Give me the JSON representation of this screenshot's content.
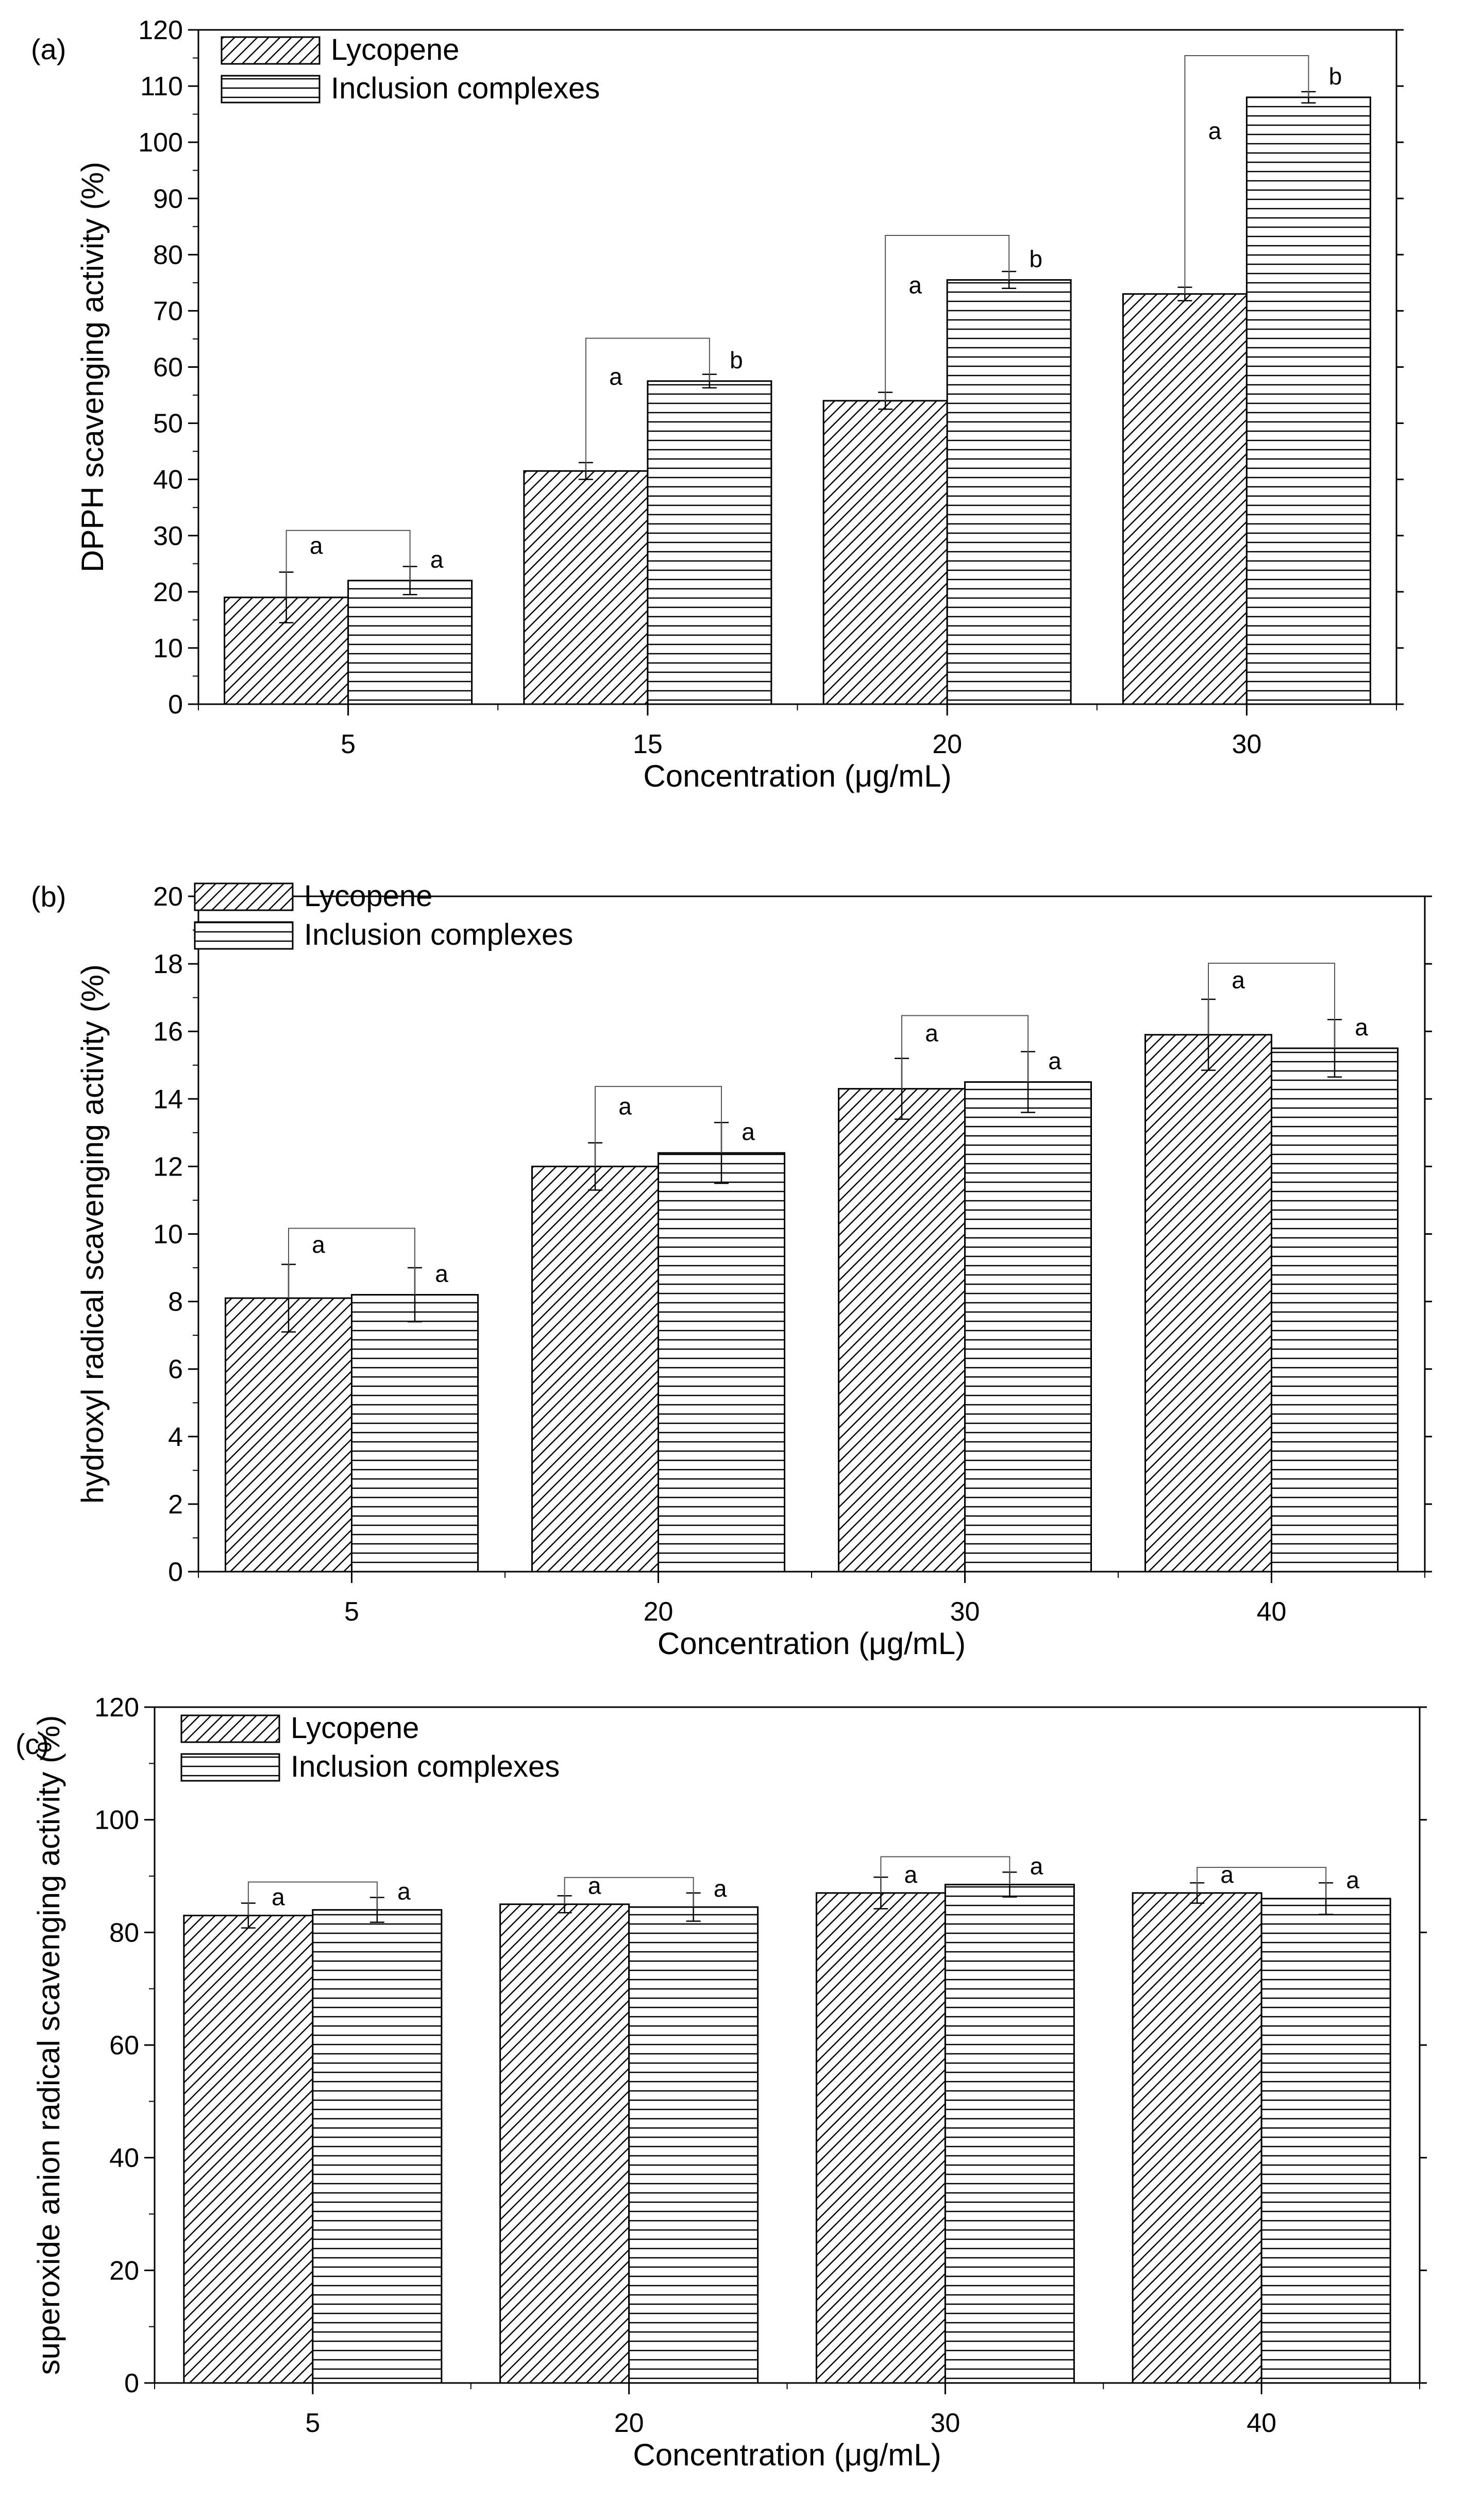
{
  "chart_data": [
    {
      "type": "bar",
      "panel_label": "(a)",
      "xlabel": "Concentration (μg/mL)",
      "ylabel": "DPPH scavenging activity (%)",
      "ylim": [
        0,
        120
      ],
      "yticks": [
        "0",
        "10",
        "20",
        "30",
        "40",
        "50",
        "60",
        "70",
        "80",
        "90",
        "100",
        "110",
        "120"
      ],
      "categories": [
        "5",
        "15",
        "20",
        "30"
      ],
      "series": [
        {
          "name": "Lycopene",
          "values": [
            19,
            41.5,
            54,
            73
          ],
          "errors": [
            4.5,
            1.5,
            1.5,
            1.2
          ]
        },
        {
          "name": "Inclusion complexes",
          "values": [
            22,
            57.5,
            75.5,
            108
          ],
          "errors": [
            2.5,
            1.2,
            1.5,
            1.0
          ]
        }
      ],
      "significance": [
        [
          "a",
          "a"
        ],
        [
          "a",
          "b"
        ],
        [
          "a",
          "b"
        ],
        [
          "a",
          "b"
        ]
      ],
      "legend_position": "top-left"
    },
    {
      "type": "bar",
      "panel_label": "(b)",
      "xlabel": "Concentration (μg/mL)",
      "ylabel": "hydroxyl radical scavenging activity (%)",
      "ylim": [
        0,
        20
      ],
      "yticks": [
        "0",
        "2",
        "4",
        "6",
        "8",
        "10",
        "12",
        "14",
        "16",
        "18",
        "20"
      ],
      "categories": [
        "5",
        "20",
        "30",
        "40"
      ],
      "series": [
        {
          "name": "Lycopene",
          "values": [
            8.1,
            12.0,
            14.3,
            15.9
          ],
          "errors": [
            1.0,
            0.7,
            0.9,
            1.05
          ]
        },
        {
          "name": "Inclusion complexes",
          "values": [
            8.2,
            12.4,
            14.5,
            15.5
          ],
          "errors": [
            0.8,
            0.9,
            0.9,
            0.85
          ]
        }
      ],
      "significance": [
        [
          "a",
          "a"
        ],
        [
          "a",
          "a"
        ],
        [
          "a",
          "a"
        ],
        [
          "a",
          "a"
        ]
      ],
      "legend_position": "top-left"
    },
    {
      "type": "bar",
      "panel_label": "(c)",
      "xlabel": "Concentration (μg/mL)",
      "ylabel": "superoxide anion radical scavenging activity (%)",
      "ylim": [
        0,
        120
      ],
      "yticks": [
        "0",
        "20",
        "40",
        "60",
        "80",
        "100",
        "120"
      ],
      "categories": [
        "5",
        "20",
        "30",
        "40"
      ],
      "series": [
        {
          "name": "Lycopene",
          "values": [
            83,
            85,
            87,
            87
          ],
          "errors": [
            2.2,
            1.5,
            2.8,
            1.8
          ]
        },
        {
          "name": "Inclusion complexes",
          "values": [
            84,
            84.5,
            88.5,
            86
          ],
          "errors": [
            2.2,
            2.5,
            2.2,
            2.8
          ]
        }
      ],
      "significance": [
        [
          "a",
          "a"
        ],
        [
          "a",
          "a"
        ],
        [
          "a",
          "a"
        ],
        [
          "a",
          "a"
        ]
      ],
      "legend_position": "top-left"
    }
  ],
  "colors": {
    "ink": "#000000",
    "background": "#ffffff"
  }
}
